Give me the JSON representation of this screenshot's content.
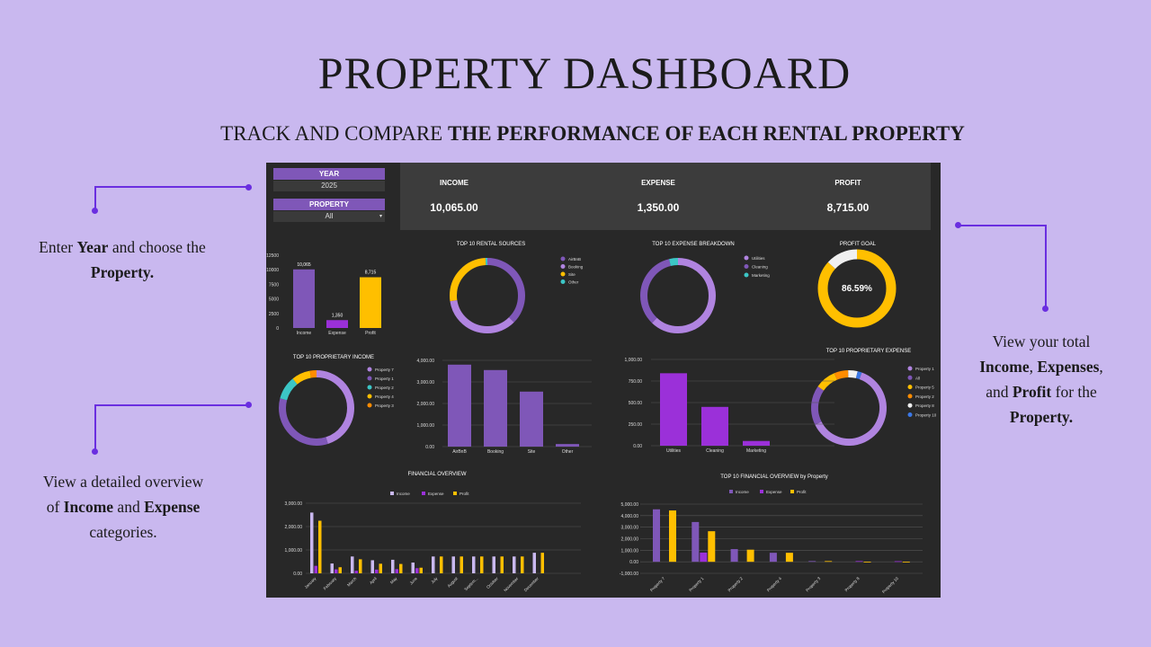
{
  "header": {
    "title": "PROPERTY DASHBOARD",
    "subtitle_plain": "TRACK AND COMPARE ",
    "subtitle_bold": "THE PERFORMANCE OF EACH RENTAL PROPERTY"
  },
  "annotations": {
    "year_property": {
      "l1_a": "Enter ",
      "l1_b": "Year",
      "l1_c": " and choose the",
      "l2_b": "Property."
    },
    "totals": {
      "l1": "View your total",
      "l2_b1": "Income",
      "l2_m": ",  ",
      "l2_b2": "Expenses",
      "l2_e": ",",
      "l3_a": "and ",
      "l3_b": "Profit",
      "l3_c": " for the",
      "l4_b": "Property."
    },
    "overview": {
      "l1": "View a detailed overview",
      "l2_a": "of ",
      "l2_b1": "Income",
      "l2_m": " and ",
      "l2_b2": "Expense",
      "l3": "categories."
    }
  },
  "filters": {
    "year_label": "YEAR",
    "year_value": "2025",
    "property_label": "PROPERTY",
    "property_value": "All",
    "dropdown_icon": "chevron-down-icon"
  },
  "kpis": [
    {
      "label": "INCOME",
      "value": "10,065.00"
    },
    {
      "label": "EXPENSE",
      "value": "1,350.00"
    },
    {
      "label": "PROFIT",
      "value": "8,715.00"
    }
  ],
  "colors": {
    "purple": "#7f57b8",
    "violet": "#9b30d9",
    "lavender": "#b084e0",
    "yellow": "#ffbf00",
    "teal": "#3cc6c6",
    "orange": "#ff8c00",
    "white": "#f0f0f0",
    "blue": "#3b78e7",
    "bg": "#282828"
  },
  "chart_data": [
    {
      "id": "summary",
      "type": "bar",
      "title": "",
      "categories": [
        "Income",
        "Expense",
        "Profit"
      ],
      "values": [
        10065,
        1350,
        8715
      ],
      "data_labels": [
        "10,065",
        "1,350",
        "8,715"
      ],
      "colors": [
        "#7f57b8",
        "#9b30d9",
        "#ffbf00"
      ],
      "yticks": [
        "12500",
        "10000",
        "7500",
        "5000",
        "2500",
        "0"
      ],
      "ylim": [
        0,
        12500
      ]
    },
    {
      "id": "rental_sources",
      "type": "pie",
      "title": "TOP 10 RENTAL SOURCES",
      "labels": [
        "AirBnB",
        "Booking",
        "Site",
        "Other"
      ],
      "values": [
        37.5,
        35,
        26.5,
        1
      ],
      "colors": [
        "#7f57b8",
        "#b084e0",
        "#ffbf00",
        "#3cc6c6"
      ]
    },
    {
      "id": "expense_breakdown",
      "type": "pie",
      "title": "TOP 10 EXPENSE BREAKDOWN",
      "labels": [
        "Utilities",
        "Cleaning",
        "Marketing"
      ],
      "values": [
        62,
        34,
        4
      ],
      "colors": [
        "#b084e0",
        "#7f57b8",
        "#3cc6c6"
      ]
    },
    {
      "id": "profit_goal",
      "type": "pie",
      "title": "PROFIT GOAL",
      "center_label": "86.59%",
      "values": [
        86.59,
        13.41
      ],
      "colors": [
        "#ffbf00",
        "#f0f0f0"
      ]
    },
    {
      "id": "prop_income_pie",
      "type": "pie",
      "title": "TOP 10 PROPRIETARY INCOME",
      "labels": [
        "Property 7",
        "Property 1",
        "Property 2",
        "Property 4",
        "Property 3"
      ],
      "values": [
        45,
        34,
        10,
        8,
        3
      ],
      "colors": [
        "#b084e0",
        "#7f57b8",
        "#3cc6c6",
        "#ffbf00",
        "#ff8c00"
      ]
    },
    {
      "id": "income_by_source",
      "type": "bar",
      "title": "",
      "categories": [
        "AirBnB",
        "Booking",
        "Site",
        "Other"
      ],
      "values": [
        3800,
        3550,
        2550,
        120
      ],
      "yticks": [
        "4,000.00",
        "3,000.00",
        "2,000.00",
        "1,000.00",
        "0.00"
      ],
      "ylim": [
        0,
        4000
      ]
    },
    {
      "id": "expense_by_category",
      "type": "bar",
      "title": "",
      "categories": [
        "Utilities",
        "Cleaning",
        "Marketing"
      ],
      "values": [
        840,
        450,
        55
      ],
      "yticks": [
        "1,000.00",
        "750.00",
        "500.00",
        "250.00",
        "0.00"
      ],
      "ylim": [
        0,
        1000
      ]
    },
    {
      "id": "prop_expense_pie",
      "type": "pie",
      "title": "TOP 10 PROPRIETARY EXPENSE",
      "labels": [
        "Property 1",
        "All",
        "Property 5",
        "Property 2",
        "Property 8",
        "Property 10"
      ],
      "values": [
        62,
        17,
        9,
        6,
        4,
        2
      ],
      "colors": [
        "#b084e0",
        "#7f57b8",
        "#ffbf00",
        "#ff8c00",
        "#f0f0f0",
        "#3b78e7"
      ]
    },
    {
      "id": "financial_overview",
      "type": "bar",
      "title": "FINANCIAL OVERVIEW",
      "categories": [
        "January",
        "February",
        "March",
        "April",
        "May",
        "June",
        "July",
        "August",
        "Septem...",
        "October",
        "November",
        "December"
      ],
      "series": [
        {
          "name": "Income",
          "color": "#c9b8ef",
          "values": [
            2600,
            420,
            720,
            560,
            580,
            460,
            720,
            720,
            720,
            720,
            720,
            880
          ]
        },
        {
          "name": "Expense",
          "color": "#9b30d9",
          "values": [
            320,
            170,
            110,
            160,
            180,
            220,
            0,
            0,
            0,
            0,
            0,
            0
          ]
        },
        {
          "name": "Profit",
          "color": "#ffbf00",
          "values": [
            2250,
            260,
            600,
            410,
            400,
            240,
            720,
            720,
            720,
            720,
            720,
            880
          ]
        }
      ],
      "yticks": [
        "3,000.00",
        "2,000.00",
        "1,000.00",
        "0.00"
      ],
      "ylim": [
        0,
        3000
      ]
    },
    {
      "id": "financial_by_property",
      "type": "bar",
      "title": "TOP 10 FINANCIAL OVERVIEW by Property",
      "categories": [
        "Property 7",
        "Property 1",
        "Property 2",
        "Property 4",
        "Property 3",
        "Property 8",
        "Property 10"
      ],
      "series": [
        {
          "name": "Income",
          "color": "#7f57b8",
          "values": [
            4550,
            3450,
            1100,
            780,
            60,
            0,
            0
          ]
        },
        {
          "name": "Expense",
          "color": "#9b30d9",
          "values": [
            0,
            800,
            0,
            0,
            0,
            60,
            50
          ]
        },
        {
          "name": "Profit",
          "color": "#ffbf00",
          "values": [
            4450,
            2650,
            1050,
            780,
            60,
            -60,
            -50
          ]
        }
      ],
      "yticks": [
        "5,000.00",
        "4,000.00",
        "3,000.00",
        "2,000.00",
        "1,000.00",
        "0.00",
        "-1,000.00"
      ],
      "ylim": [
        -1000,
        5000
      ]
    }
  ]
}
